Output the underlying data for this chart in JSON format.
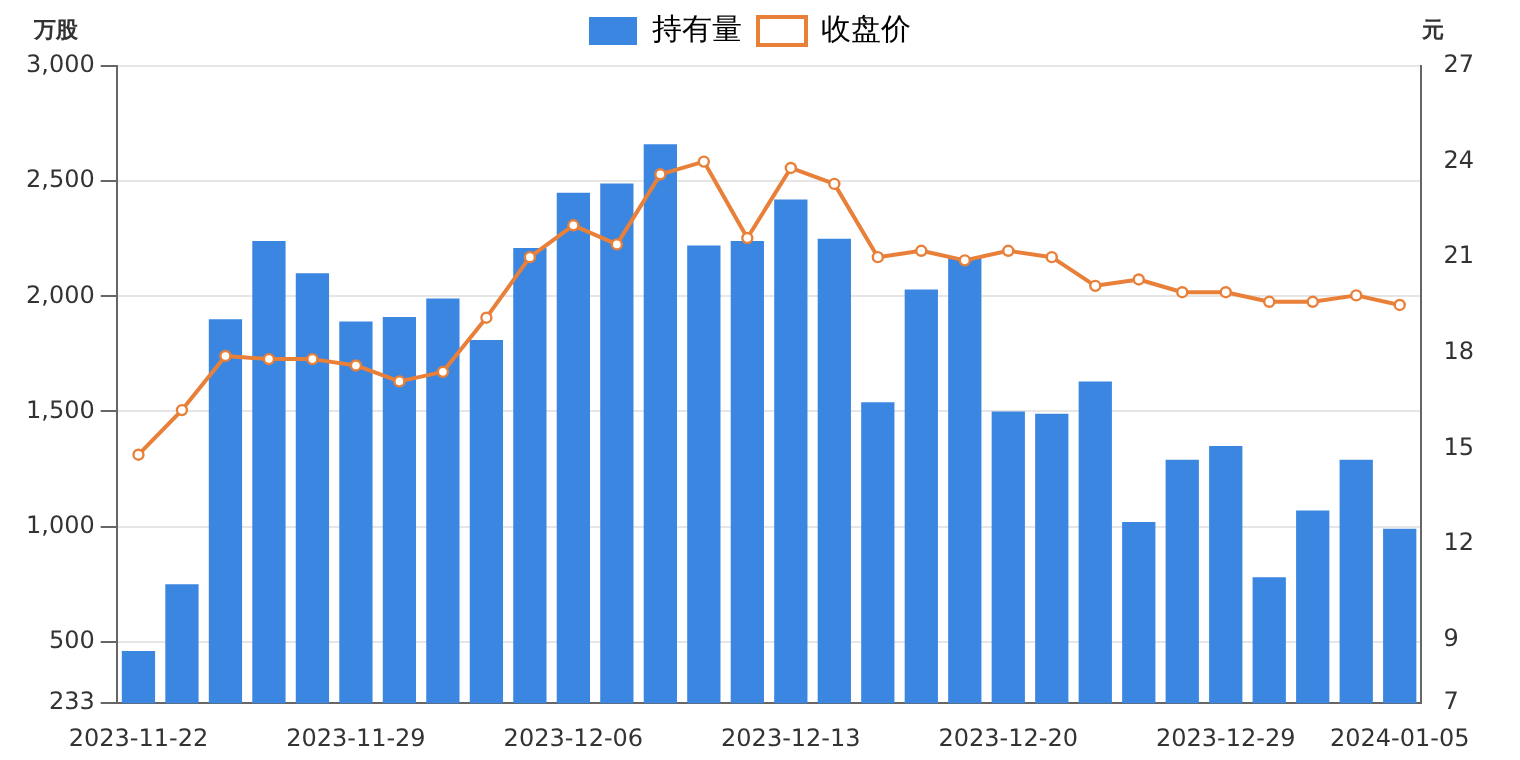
{
  "chart_data": {
    "type": "bar",
    "ylabel": "万股",
    "y2label": "元",
    "categories": [
      "2023-11-22",
      null,
      null,
      null,
      null,
      "2023-11-29",
      null,
      null,
      null,
      null,
      "2023-12-06",
      null,
      null,
      null,
      null,
      "2023-12-13",
      null,
      null,
      null,
      null,
      "2023-12-20",
      null,
      null,
      null,
      null,
      "2023-12-29",
      null,
      null,
      null,
      "2024-01-05"
    ],
    "series": [
      {
        "name": "持有量",
        "color": "#3a86e0",
        "values": [
          460,
          750,
          1900,
          2240,
          2100,
          1890,
          1910,
          1990,
          1810,
          2210,
          2450,
          2490,
          2660,
          2220,
          2240,
          2420,
          2250,
          1540,
          2030,
          2170,
          1500,
          1490,
          1630,
          1020,
          1290,
          1350,
          780,
          1070,
          1290,
          990
        ]
      },
      {
        "name": "收盘价",
        "type": "line",
        "axis": "y2",
        "color": "#e8803a",
        "marker": "circle",
        "values": [
          14.8,
          16.2,
          17.9,
          17.8,
          17.8,
          17.6,
          17.1,
          17.4,
          19.1,
          21.0,
          22.0,
          21.4,
          23.6,
          24.0,
          21.6,
          23.8,
          23.3,
          21.0,
          21.2,
          20.9,
          21.2,
          21.0,
          20.1,
          20.3,
          19.9,
          19.9,
          19.6,
          19.6,
          19.8,
          19.5
        ]
      }
    ],
    "ylim": [
      233,
      3000
    ],
    "yticks": [
      233,
      500,
      {
        "value": 1000,
        "label": "1,000"
      },
      {
        "value": 1500,
        "label": "1,500"
      },
      {
        "value": 2000,
        "label": "2,000"
      },
      {
        "value": 2500,
        "label": "2,500"
      },
      {
        "value": 3000,
        "label": "3,000"
      }
    ],
    "y2lim": [
      7,
      27
    ],
    "y2ticks": [
      7,
      9,
      12,
      15,
      18,
      21,
      24,
      27
    ],
    "grid": "y",
    "legend": "top"
  }
}
